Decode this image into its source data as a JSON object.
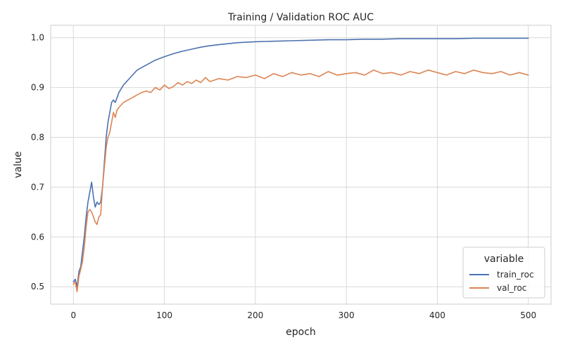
{
  "chart_data": {
    "type": "line",
    "title": "Training / Validation ROC AUC",
    "xlabel": "epoch",
    "ylabel": "value",
    "xlim": [
      -25,
      525
    ],
    "ylim": [
      0.465,
      1.025
    ],
    "xticks": [
      0,
      100,
      200,
      300,
      400,
      500
    ],
    "xtick_labels": [
      "0",
      "100",
      "200",
      "300",
      "400",
      "500"
    ],
    "yticks": [
      0.5,
      0.6,
      0.7,
      0.8,
      0.9,
      1.0
    ],
    "ytick_labels": [
      "0.5",
      "0.6",
      "0.7",
      "0.8",
      "0.9",
      "1.0"
    ],
    "grid": true,
    "legend": {
      "title": "variable",
      "placement": "lower-right",
      "entries": [
        "train_roc",
        "val_roc"
      ]
    },
    "series": [
      {
        "name": "train_roc",
        "color": "#4c72b0",
        "x": [
          0,
          2,
          4,
          6,
          8,
          10,
          12,
          14,
          16,
          18,
          20,
          22,
          24,
          26,
          28,
          30,
          32,
          34,
          36,
          38,
          40,
          42,
          44,
          46,
          48,
          50,
          55,
          60,
          65,
          70,
          80,
          90,
          100,
          110,
          120,
          130,
          140,
          150,
          160,
          170,
          180,
          190,
          200,
          220,
          240,
          260,
          280,
          300,
          320,
          340,
          360,
          380,
          400,
          420,
          440,
          460,
          480,
          500
        ],
        "values": [
          0.51,
          0.515,
          0.5,
          0.53,
          0.54,
          0.57,
          0.6,
          0.64,
          0.67,
          0.69,
          0.71,
          0.68,
          0.66,
          0.67,
          0.665,
          0.67,
          0.7,
          0.75,
          0.8,
          0.83,
          0.85,
          0.87,
          0.875,
          0.87,
          0.88,
          0.89,
          0.905,
          0.915,
          0.925,
          0.935,
          0.945,
          0.955,
          0.962,
          0.968,
          0.973,
          0.977,
          0.981,
          0.984,
          0.986,
          0.988,
          0.99,
          0.991,
          0.992,
          0.993,
          0.994,
          0.995,
          0.996,
          0.996,
          0.997,
          0.997,
          0.998,
          0.998,
          0.998,
          0.998,
          0.999,
          0.999,
          0.999,
          0.999
        ]
      },
      {
        "name": "val_roc",
        "color": "#dd8452",
        "x": [
          0,
          2,
          4,
          6,
          8,
          10,
          12,
          14,
          16,
          18,
          20,
          22,
          24,
          26,
          28,
          30,
          32,
          34,
          36,
          38,
          40,
          42,
          44,
          46,
          48,
          50,
          55,
          60,
          65,
          70,
          75,
          80,
          85,
          90,
          95,
          100,
          105,
          110,
          115,
          120,
          125,
          130,
          135,
          140,
          145,
          150,
          160,
          170,
          180,
          190,
          200,
          210,
          220,
          230,
          240,
          250,
          260,
          270,
          280,
          290,
          300,
          310,
          320,
          330,
          340,
          350,
          360,
          370,
          380,
          390,
          400,
          410,
          420,
          430,
          440,
          450,
          460,
          470,
          480,
          490,
          500
        ],
        "values": [
          0.505,
          0.51,
          0.49,
          0.52,
          0.535,
          0.55,
          0.58,
          0.62,
          0.65,
          0.655,
          0.65,
          0.64,
          0.63,
          0.625,
          0.64,
          0.645,
          0.7,
          0.74,
          0.78,
          0.8,
          0.81,
          0.83,
          0.85,
          0.84,
          0.855,
          0.86,
          0.87,
          0.875,
          0.88,
          0.885,
          0.89,
          0.893,
          0.89,
          0.9,
          0.895,
          0.905,
          0.898,
          0.902,
          0.91,
          0.905,
          0.912,
          0.908,
          0.915,
          0.91,
          0.92,
          0.912,
          0.918,
          0.915,
          0.922,
          0.92,
          0.925,
          0.918,
          0.928,
          0.922,
          0.93,
          0.925,
          0.928,
          0.922,
          0.932,
          0.925,
          0.928,
          0.93,
          0.925,
          0.935,
          0.928,
          0.93,
          0.925,
          0.932,
          0.928,
          0.935,
          0.93,
          0.925,
          0.932,
          0.928,
          0.935,
          0.93,
          0.928,
          0.932,
          0.925,
          0.93,
          0.925
        ]
      }
    ]
  }
}
